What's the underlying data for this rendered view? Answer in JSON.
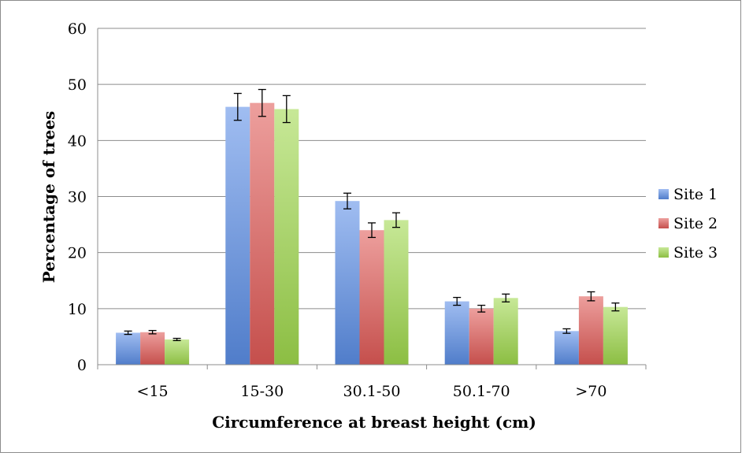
{
  "chart_data": {
    "type": "bar",
    "title": "",
    "xlabel": "Circumference at breast height (cm)",
    "ylabel": "Percentage of trees",
    "categories": [
      "<15",
      "15-30",
      "30.1-50",
      "50.1-70",
      ">70"
    ],
    "ylim": [
      0,
      60
    ],
    "yticks": [
      "0",
      "10",
      "20",
      "30",
      "40",
      "50",
      "60"
    ],
    "grid": true,
    "legend_position": "right",
    "series": [
      {
        "name": "Site 1",
        "color": "#5b8ee6",
        "values": [
          5.7,
          46.0,
          29.2,
          11.3,
          6.0
        ],
        "errors": [
          0.3,
          2.4,
          1.4,
          0.7,
          0.4
        ]
      },
      {
        "name": "Site 2",
        "color": "#e05a56",
        "values": [
          5.8,
          46.7,
          24.0,
          10.0,
          12.2
        ],
        "errors": [
          0.3,
          2.4,
          1.3,
          0.6,
          0.8
        ]
      },
      {
        "name": "Site 3",
        "color": "#9fd84c",
        "values": [
          4.5,
          45.6,
          25.8,
          11.9,
          10.3
        ],
        "errors": [
          0.2,
          2.4,
          1.3,
          0.7,
          0.7
        ]
      }
    ]
  }
}
